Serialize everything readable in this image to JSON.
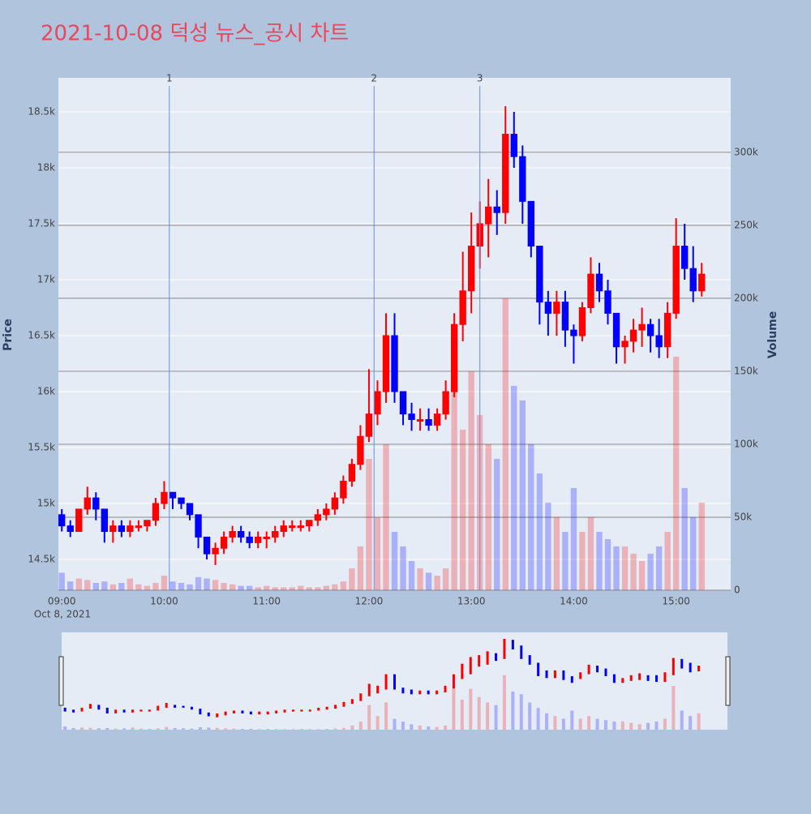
{
  "chart_data": {
    "type": "candlestick",
    "title": "2021-10-08 덕성 뉴스_공시 차트",
    "ylabel": "Price",
    "y2label": "Volume",
    "x_date_label": "Oct 8, 2021",
    "increasing_color": "#ff0000",
    "decreasing_color": "#0000ff",
    "x": [
      "09:00",
      "09:05",
      "09:10",
      "09:15",
      "09:20",
      "09:25",
      "09:30",
      "09:35",
      "09:40",
      "09:45",
      "09:50",
      "09:55",
      "10:00",
      "10:05",
      "10:10",
      "10:15",
      "10:20",
      "10:25",
      "10:30",
      "10:35",
      "10:40",
      "10:45",
      "10:50",
      "10:55",
      "11:00",
      "11:05",
      "11:10",
      "11:15",
      "11:20",
      "11:25",
      "11:30",
      "11:35",
      "11:40",
      "11:45",
      "11:50",
      "11:55",
      "12:00",
      "12:05",
      "12:10",
      "12:15",
      "12:20",
      "12:25",
      "12:30",
      "12:35",
      "12:40",
      "12:45",
      "12:50",
      "12:55",
      "13:00",
      "13:05",
      "13:10",
      "13:15",
      "13:20",
      "13:25",
      "13:30",
      "13:35",
      "13:40",
      "13:45",
      "13:50",
      "13:55",
      "14:00",
      "14:05",
      "14:10",
      "14:15",
      "14:20",
      "14:25",
      "14:30",
      "14:35",
      "14:40",
      "14:45",
      "14:50",
      "14:55",
      "15:00",
      "15:05",
      "15:10",
      "15:15"
    ],
    "open": [
      14900,
      14800,
      14750,
      14950,
      15050,
      14950,
      14750,
      14800,
      14750,
      14800,
      14800,
      14850,
      15000,
      15100,
      15050,
      15000,
      14900,
      14700,
      14550,
      14600,
      14700,
      14750,
      14700,
      14650,
      14700,
      14700,
      14750,
      14800,
      14800,
      14800,
      14850,
      14900,
      14950,
      15050,
      15200,
      15350,
      15600,
      15800,
      16000,
      16500,
      16000,
      15800,
      15750,
      15750,
      15700,
      15800,
      16000,
      16600,
      16900,
      17300,
      17500,
      17650,
      17600,
      18300,
      18100,
      17700,
      17300,
      16800,
      16700,
      16800,
      16550,
      16500,
      16750,
      17050,
      16900,
      16700,
      16400,
      16450,
      16550,
      16600,
      16500,
      16400,
      16700,
      17300,
      17100,
      16900
    ],
    "high": [
      14950,
      14850,
      14950,
      15150,
      15100,
      14950,
      14850,
      14850,
      14850,
      14850,
      14850,
      15050,
      15200,
      15100,
      15050,
      15000,
      14900,
      14700,
      14650,
      14750,
      14800,
      14800,
      14750,
      14750,
      14750,
      14800,
      14850,
      14850,
      14850,
      14850,
      14950,
      15000,
      15100,
      15250,
      15400,
      15700,
      16200,
      16100,
      16700,
      16700,
      16000,
      15900,
      15850,
      15850,
      15850,
      16100,
      16700,
      17250,
      17600,
      17700,
      17900,
      17800,
      18550,
      18500,
      18200,
      17700,
      17300,
      16900,
      16900,
      16900,
      16600,
      16800,
      17200,
      17150,
      17000,
      16700,
      16500,
      16650,
      16750,
      16650,
      16650,
      16800,
      17550,
      17500,
      17300,
      17150
    ],
    "low": [
      14750,
      14700,
      14750,
      14900,
      14850,
      14650,
      14650,
      14700,
      14700,
      14750,
      14750,
      14800,
      14950,
      14950,
      14950,
      14850,
      14600,
      14500,
      14450,
      14550,
      14650,
      14650,
      14600,
      14600,
      14600,
      14650,
      14700,
      14750,
      14750,
      14750,
      14800,
      14850,
      14900,
      15000,
      15150,
      15300,
      15550,
      15700,
      15900,
      15900,
      15700,
      15650,
      15650,
      15650,
      15650,
      15750,
      15950,
      16450,
      16700,
      17100,
      17200,
      17400,
      17500,
      18000,
      17500,
      17200,
      16600,
      16500,
      16500,
      16400,
      16250,
      16450,
      16700,
      16800,
      16600,
      16250,
      16250,
      16350,
      16400,
      16350,
      16300,
      16300,
      16650,
      17000,
      16800,
      16850
    ],
    "close": [
      14800,
      14750,
      14950,
      15050,
      14950,
      14750,
      14800,
      14750,
      14800,
      14800,
      14850,
      15000,
      15100,
      15050,
      15000,
      14900,
      14700,
      14550,
      14600,
      14700,
      14750,
      14700,
      14650,
      14700,
      14700,
      14750,
      14800,
      14800,
      14800,
      14850,
      14900,
      14950,
      15050,
      15200,
      15350,
      15600,
      15800,
      16000,
      16500,
      16000,
      15800,
      15750,
      15750,
      15700,
      15800,
      16000,
      16600,
      16900,
      17300,
      17500,
      17650,
      17600,
      18300,
      18100,
      17700,
      17300,
      16800,
      16700,
      16800,
      16550,
      16500,
      16750,
      17050,
      16900,
      16700,
      16400,
      16450,
      16550,
      16600,
      16500,
      16400,
      16700,
      17300,
      17100,
      16900,
      17050
    ],
    "volume": [
      12000,
      6000,
      8000,
      7000,
      5000,
      6000,
      4000,
      5000,
      8000,
      4000,
      3000,
      5000,
      10000,
      6000,
      5000,
      4000,
      9000,
      8000,
      7000,
      5000,
      4000,
      3000,
      3000,
      2000,
      3000,
      2000,
      2000,
      2000,
      3000,
      2000,
      2000,
      3000,
      4000,
      6000,
      15000,
      30000,
      90000,
      50000,
      100000,
      40000,
      30000,
      20000,
      15000,
      12000,
      10000,
      15000,
      150000,
      110000,
      150000,
      120000,
      100000,
      90000,
      200000,
      140000,
      130000,
      100000,
      80000,
      60000,
      50000,
      40000,
      70000,
      40000,
      50000,
      40000,
      35000,
      30000,
      30000,
      25000,
      20000,
      25000,
      30000,
      40000,
      160000,
      70000,
      50000,
      60000
    ],
    "xlim": [
      "08:58",
      "15:32"
    ],
    "xticks": [
      "09:00",
      "10:00",
      "11:00",
      "12:00",
      "13:00",
      "14:00",
      "15:00"
    ],
    "ylim": [
      14225,
      18804
    ],
    "yticks": [
      {
        "value": 14500,
        "label": "14.5k"
      },
      {
        "value": 15000,
        "label": "15k"
      },
      {
        "value": 15500,
        "label": "15.5k"
      },
      {
        "value": 16000,
        "label": "16k"
      },
      {
        "value": 16500,
        "label": "16.5k"
      },
      {
        "value": 17000,
        "label": "17k"
      },
      {
        "value": 17500,
        "label": "17.5k"
      },
      {
        "value": 18000,
        "label": "18k"
      },
      {
        "value": 18500,
        "label": "18.5k"
      }
    ],
    "y2lim": [
      0,
      351000
    ],
    "y2ticks": [
      0,
      {
        "value": 50000,
        "label": "50k"
      },
      {
        "value": 100000,
        "label": "100k"
      },
      {
        "value": 150000,
        "label": "150k"
      },
      {
        "value": 200000,
        "label": "200k"
      },
      {
        "value": 250000,
        "label": "250k"
      },
      {
        "value": 300000,
        "label": "300k"
      }
    ],
    "annotations": [
      {
        "x": "10:03",
        "text": "1"
      },
      {
        "x": "12:03",
        "text": "2"
      },
      {
        "x": "13:05",
        "text": "3"
      }
    ]
  }
}
